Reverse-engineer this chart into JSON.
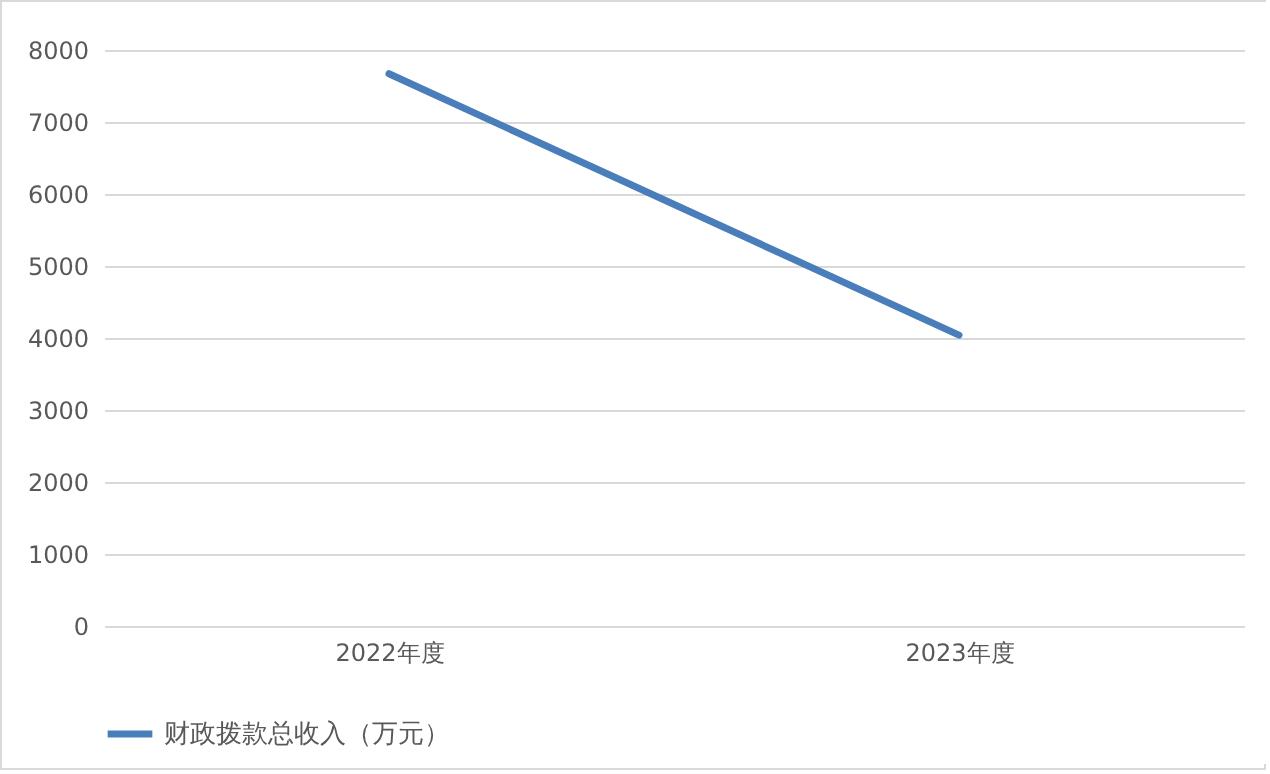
{
  "chart_data": {
    "type": "line",
    "categories": [
      "2022年度",
      "2023年度"
    ],
    "series": [
      {
        "name": "财政拨款总收入（万元）",
        "color": "#4a7ebb",
        "values": [
          7670,
          4040
        ]
      }
    ],
    "ylim": [
      0,
      8000
    ],
    "yticks": [
      0,
      1000,
      2000,
      3000,
      4000,
      5000,
      6000,
      7000,
      8000
    ],
    "grid": "y",
    "legend": "bottom",
    "marker": "none",
    "line_style": "solid"
  }
}
